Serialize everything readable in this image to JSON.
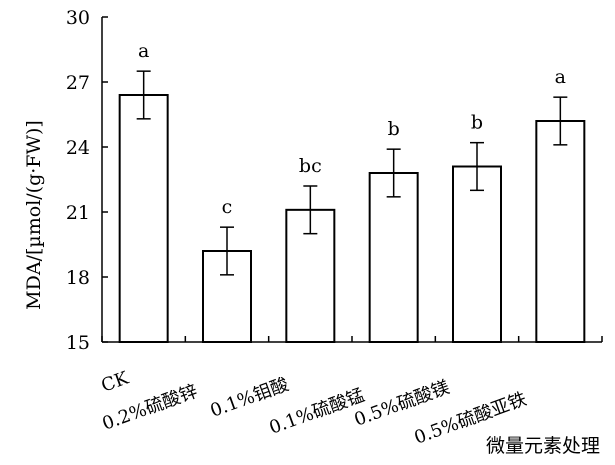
{
  "chart_data": {
    "type": "bar",
    "title": "",
    "ylabel": "MDA/[µmol/(g·FW)]",
    "xlabel": "微量元素处理",
    "ylim": [
      15,
      30
    ],
    "yticks": [
      15,
      18,
      21,
      24,
      27,
      30
    ],
    "grid": false,
    "categories": [
      "CK",
      "0.2%硫酸锌",
      "0.1%钼酸",
      "0.1%硫酸锰",
      "0.5%硫酸镁",
      "0.5%硫酸亚铁"
    ],
    "series": [
      {
        "values": [
          26.4,
          19.2,
          21.1,
          22.8,
          23.1,
          25.2
        ],
        "errors": [
          1.1,
          1.1,
          1.1,
          1.1,
          1.1,
          1.1
        ],
        "significance": [
          "a",
          "c",
          "bc",
          "b",
          "b",
          "a"
        ]
      }
    ],
    "colors": {
      "bar_fill": "#ffffff",
      "stroke": "#000000"
    }
  }
}
